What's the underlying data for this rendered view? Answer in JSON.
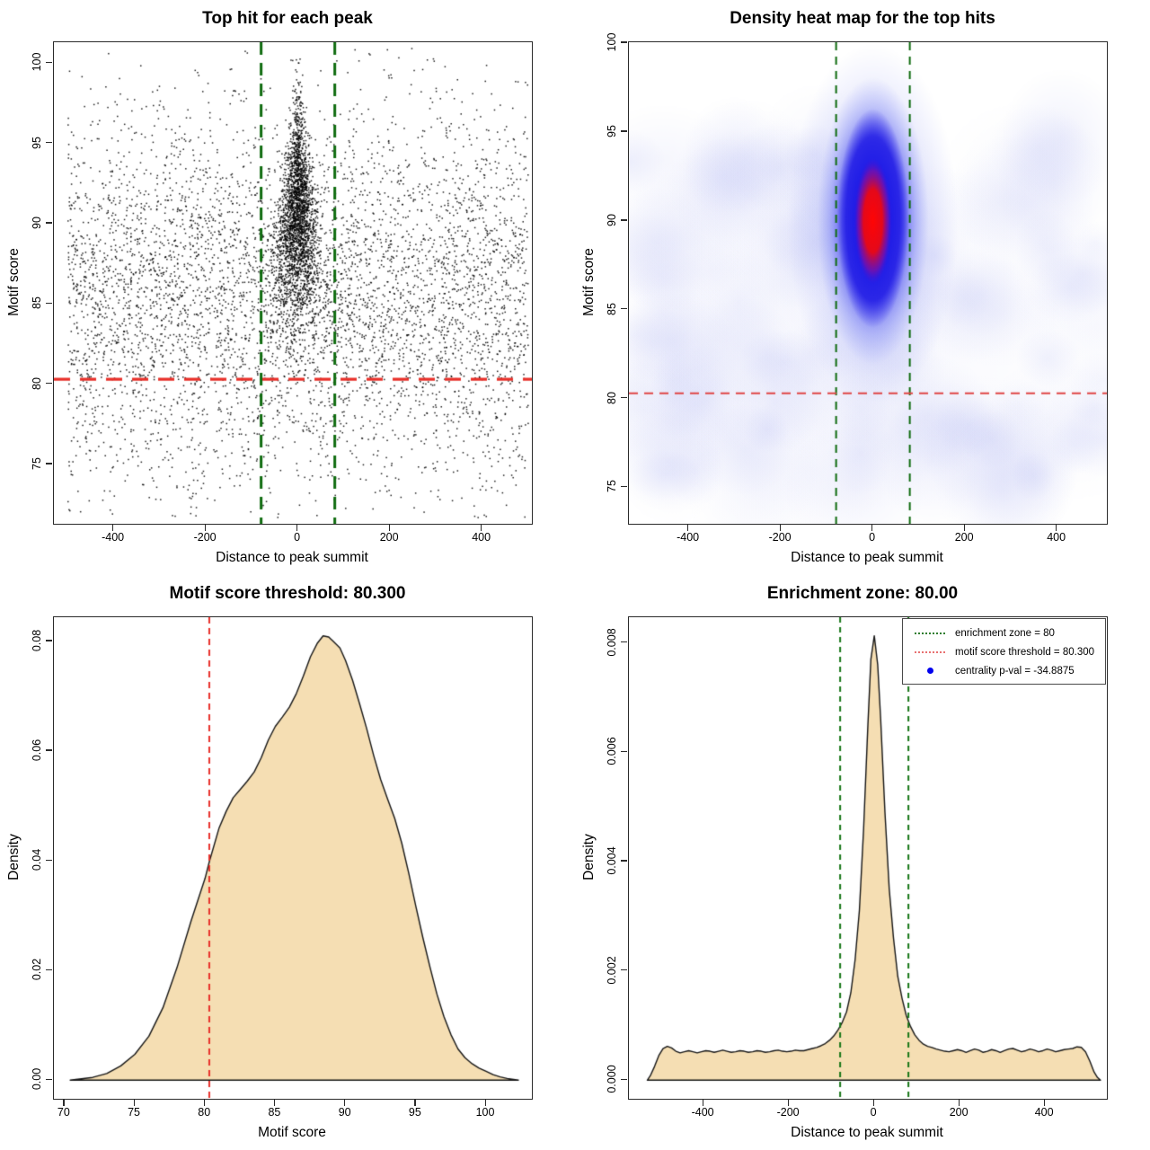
{
  "figure": {
    "background": "#FFFFFF",
    "area_fill": "#F5DEB3",
    "curve_stroke": "#161616",
    "point_color": "#000000",
    "threshold_red": "#E8302A",
    "zone_green": "#0F6B0F",
    "motif_score_threshold": 80.3,
    "enrichment_zone_halfwidth": 80,
    "centrality_p_val": -34.8875
  },
  "chart_data": [
    {
      "type": "scatter",
      "title": "Top hit for each peak",
      "xlabel": "Distance to peak summit",
      "ylabel": "Motif score",
      "xlim": [
        -530,
        508
      ],
      "ylim": [
        71.3,
        101.3
      ],
      "x_ticks": [
        -400,
        -200,
        0,
        200,
        400
      ],
      "x_tick_labels": [
        "-400",
        "-200",
        "0",
        "200",
        "400"
      ],
      "y_ticks": [
        75,
        80,
        85,
        90,
        95,
        100
      ],
      "y_tick_labels": [
        "75",
        "80",
        "85",
        "90",
        "95",
        "100"
      ],
      "grid": false,
      "threshold_line": {
        "y": 80.3,
        "color": "#E8302A",
        "width": 3.2,
        "dash": [
          18,
          11
        ]
      },
      "zone_lines": {
        "x": [
          -80,
          80
        ],
        "color": "#0F6B0F",
        "width": 3,
        "dash": [
          14,
          9
        ]
      },
      "points_model": {
        "background": {
          "n": 5200,
          "x_distribution": "uniform -500..500",
          "y_mean": 85.3,
          "y_sd": 5.9
        },
        "central_cluster": {
          "n": 2600,
          "x_center": 0,
          "y_mean": 90.1,
          "y_sd": 3.4,
          "shape": "cone narrowing toward high scores, mostly within enrichment zone"
        }
      }
    },
    {
      "type": "heatmap",
      "title": "Density heat map for the top hits",
      "xlabel": "Distance to peak summit",
      "ylabel": "Motif score",
      "xlim": [
        -530,
        508
      ],
      "ylim": [
        72.95,
        100.05
      ],
      "x_ticks": [
        -400,
        -200,
        0,
        200,
        400
      ],
      "x_tick_labels": [
        "-400",
        "-200",
        "0",
        "200",
        "400"
      ],
      "y_ticks": [
        75,
        80,
        85,
        90,
        95,
        100
      ],
      "y_tick_labels": [
        "75",
        "80",
        "85",
        "90",
        "95",
        "100"
      ],
      "grid": false,
      "threshold_line": {
        "y": 80.3,
        "color": "#E04545",
        "width": 2,
        "dash": [
          10,
          7
        ]
      },
      "zone_lines": {
        "x": [
          -80,
          80
        ],
        "color": "#0F6B0F",
        "width": 2,
        "dash": [
          9,
          7
        ]
      },
      "hotspot": {
        "x": 0,
        "y": 89.6,
        "y_extent": [
          84,
          96.5
        ],
        "core_color": "#FF0000"
      },
      "colormap": [
        "#FFFFFF",
        "#DCDFF8",
        "#9AA0EE",
        "#1E1EE6",
        "#FF0000"
      ]
    },
    {
      "type": "area",
      "title": "Motif score threshold: 80.300",
      "xlabel": "Motif score",
      "ylabel": "Density",
      "xlim": [
        69.24,
        103.26
      ],
      "ylim": [
        -0.0034,
        0.0844
      ],
      "x_ticks": [
        70,
        75,
        80,
        85,
        90,
        95,
        100
      ],
      "x_tick_labels": [
        "70",
        "75",
        "80",
        "85",
        "90",
        "95",
        "100"
      ],
      "y_ticks": [
        0,
        0.02,
        0.04,
        0.06,
        0.08
      ],
      "y_tick_labels": [
        "0.00",
        "0.02",
        "0.04",
        "0.06",
        "0.08"
      ],
      "grid": false,
      "fill": "#F5DEB3",
      "threshold_line": {
        "x": 80.3,
        "color": "#E8302A",
        "width": 2,
        "dash": [
          7,
          5
        ]
      },
      "curve": [
        [
          70.4,
          0
        ],
        [
          72,
          0.0005
        ],
        [
          73,
          0.0012
        ],
        [
          74,
          0.0026
        ],
        [
          75,
          0.0047
        ],
        [
          76,
          0.008
        ],
        [
          77,
          0.0132
        ],
        [
          78,
          0.0205
        ],
        [
          79,
          0.029
        ],
        [
          80,
          0.0368
        ],
        [
          80.3,
          0.0398
        ],
        [
          81,
          0.046
        ],
        [
          81.5,
          0.049
        ],
        [
          82,
          0.0515
        ],
        [
          82.5,
          0.053
        ],
        [
          83,
          0.0545
        ],
        [
          83.5,
          0.0562
        ],
        [
          84,
          0.0588
        ],
        [
          84.5,
          0.062
        ],
        [
          85,
          0.0645
        ],
        [
          85.5,
          0.0662
        ],
        [
          86,
          0.068
        ],
        [
          86.5,
          0.0705
        ],
        [
          87,
          0.0737
        ],
        [
          87.5,
          0.0772
        ],
        [
          88,
          0.0797
        ],
        [
          88.4,
          0.081
        ],
        [
          88.8,
          0.0808
        ],
        [
          89.2,
          0.0798
        ],
        [
          89.6,
          0.0788
        ],
        [
          90,
          0.0765
        ],
        [
          90.5,
          0.0729
        ],
        [
          91,
          0.0686
        ],
        [
          91.5,
          0.0641
        ],
        [
          92,
          0.0592
        ],
        [
          92.5,
          0.0548
        ],
        [
          93,
          0.0512
        ],
        [
          93.5,
          0.0477
        ],
        [
          94,
          0.0432
        ],
        [
          94.5,
          0.0377
        ],
        [
          95,
          0.0317
        ],
        [
          95.5,
          0.026
        ],
        [
          96,
          0.0207
        ],
        [
          96.5,
          0.0157
        ],
        [
          97,
          0.0116
        ],
        [
          97.5,
          0.0083
        ],
        [
          98,
          0.0057
        ],
        [
          98.5,
          0.0041
        ],
        [
          99,
          0.003
        ],
        [
          99.5,
          0.0022
        ],
        [
          100,
          0.0016
        ],
        [
          100.5,
          0.001
        ],
        [
          101,
          0.0006
        ],
        [
          101.5,
          0.0003
        ],
        [
          102.3,
          0
        ]
      ]
    },
    {
      "type": "area",
      "title": "Enrichment zone: 80.00",
      "xlabel": "Distance to peak summit",
      "ylabel": "Density",
      "xlim": [
        -575,
        545
      ],
      "ylim": [
        -0.00034,
        0.00847
      ],
      "x_ticks": [
        -400,
        -200,
        0,
        200,
        400
      ],
      "x_tick_labels": [
        "-400",
        "-200",
        "0",
        "200",
        "400"
      ],
      "y_ticks": [
        0,
        0.002,
        0.004,
        0.006,
        0.008
      ],
      "y_tick_labels": [
        "0.000",
        "0.002",
        "0.004",
        "0.006",
        "0.008"
      ],
      "grid": false,
      "fill": "#F5DEB3",
      "zone_lines": {
        "x": [
          -80,
          80
        ],
        "color": "#157515",
        "width": 2,
        "dash": [
          6,
          5
        ]
      },
      "legend": {
        "items": [
          {
            "swatch": "dotted-line",
            "color": "#2E7D2E",
            "label": "enrichment zone = 80"
          },
          {
            "swatch": "dotted-line",
            "color": "#E87070",
            "label": "motif score threshold = 80.300"
          },
          {
            "swatch": "dot",
            "color": "#0000EE",
            "label": "centrality p-val = -34.8875"
          }
        ]
      },
      "curve": [
        [
          -532,
          0
        ],
        [
          -525,
          8e-05
        ],
        [
          -515,
          0.00025
        ],
        [
          -505,
          0.00045
        ],
        [
          -495,
          0.00058
        ],
        [
          -485,
          0.00062
        ],
        [
          -475,
          0.00059
        ],
        [
          -465,
          0.00053
        ],
        [
          -455,
          0.0005
        ],
        [
          -445,
          0.00052
        ],
        [
          -435,
          0.00054
        ],
        [
          -425,
          0.00052
        ],
        [
          -415,
          0.0005
        ],
        [
          -405,
          0.00052
        ],
        [
          -395,
          0.00054
        ],
        [
          -385,
          0.00053
        ],
        [
          -375,
          0.00051
        ],
        [
          -365,
          0.00053
        ],
        [
          -355,
          0.00055
        ],
        [
          -345,
          0.00053
        ],
        [
          -335,
          0.00051
        ],
        [
          -325,
          0.00052
        ],
        [
          -315,
          0.00054
        ],
        [
          -305,
          0.00053
        ],
        [
          -295,
          0.00051
        ],
        [
          -285,
          0.00052
        ],
        [
          -275,
          0.00054
        ],
        [
          -265,
          0.00053
        ],
        [
          -255,
          0.00051
        ],
        [
          -245,
          0.00052
        ],
        [
          -235,
          0.00054
        ],
        [
          -225,
          0.00055
        ],
        [
          -215,
          0.00053
        ],
        [
          -205,
          0.00052
        ],
        [
          -195,
          0.00053
        ],
        [
          -185,
          0.00055
        ],
        [
          -175,
          0.00054
        ],
        [
          -165,
          0.00054
        ],
        [
          -155,
          0.00056
        ],
        [
          -145,
          0.00058
        ],
        [
          -135,
          0.0006
        ],
        [
          -125,
          0.00063
        ],
        [
          -115,
          0.00067
        ],
        [
          -105,
          0.00073
        ],
        [
          -95,
          0.00081
        ],
        [
          -85,
          0.00092
        ],
        [
          -75,
          0.00106
        ],
        [
          -65,
          0.00125
        ],
        [
          -55,
          0.0016
        ],
        [
          -45,
          0.0022
        ],
        [
          -35,
          0.0031
        ],
        [
          -25,
          0.0046
        ],
        [
          -15,
          0.0065
        ],
        [
          -8,
          0.0077
        ],
        [
          0,
          0.00813
        ],
        [
          8,
          0.0076
        ],
        [
          15,
          0.0066
        ],
        [
          25,
          0.0049
        ],
        [
          35,
          0.0035
        ],
        [
          45,
          0.0026
        ],
        [
          55,
          0.0019
        ],
        [
          65,
          0.0015
        ],
        [
          75,
          0.00118
        ],
        [
          85,
          0.00098
        ],
        [
          95,
          0.00083
        ],
        [
          105,
          0.00073
        ],
        [
          115,
          0.00066
        ],
        [
          125,
          0.00062
        ],
        [
          135,
          0.0006
        ],
        [
          145,
          0.00057
        ],
        [
          155,
          0.00055
        ],
        [
          165,
          0.00053
        ],
        [
          175,
          0.00052
        ],
        [
          185,
          0.00054
        ],
        [
          195,
          0.00056
        ],
        [
          205,
          0.00054
        ],
        [
          215,
          0.00051
        ],
        [
          225,
          0.00054
        ],
        [
          235,
          0.00057
        ],
        [
          245,
          0.00055
        ],
        [
          255,
          0.00051
        ],
        [
          265,
          0.00053
        ],
        [
          275,
          0.00056
        ],
        [
          285,
          0.00054
        ],
        [
          295,
          0.00051
        ],
        [
          305,
          0.00054
        ],
        [
          315,
          0.00057
        ],
        [
          325,
          0.00058
        ],
        [
          335,
          0.00055
        ],
        [
          345,
          0.00052
        ],
        [
          355,
          0.00054
        ],
        [
          365,
          0.00057
        ],
        [
          375,
          0.00055
        ],
        [
          385,
          0.00052
        ],
        [
          395,
          0.00054
        ],
        [
          405,
          0.00057
        ],
        [
          415,
          0.00055
        ],
        [
          425,
          0.00052
        ],
        [
          435,
          0.00054
        ],
        [
          445,
          0.00056
        ],
        [
          455,
          0.00057
        ],
        [
          465,
          0.00058
        ],
        [
          475,
          0.00061
        ],
        [
          485,
          0.0006
        ],
        [
          495,
          0.00052
        ],
        [
          505,
          0.00035
        ],
        [
          515,
          0.00015
        ],
        [
          523,
          5e-05
        ],
        [
          530,
          0
        ]
      ]
    }
  ]
}
